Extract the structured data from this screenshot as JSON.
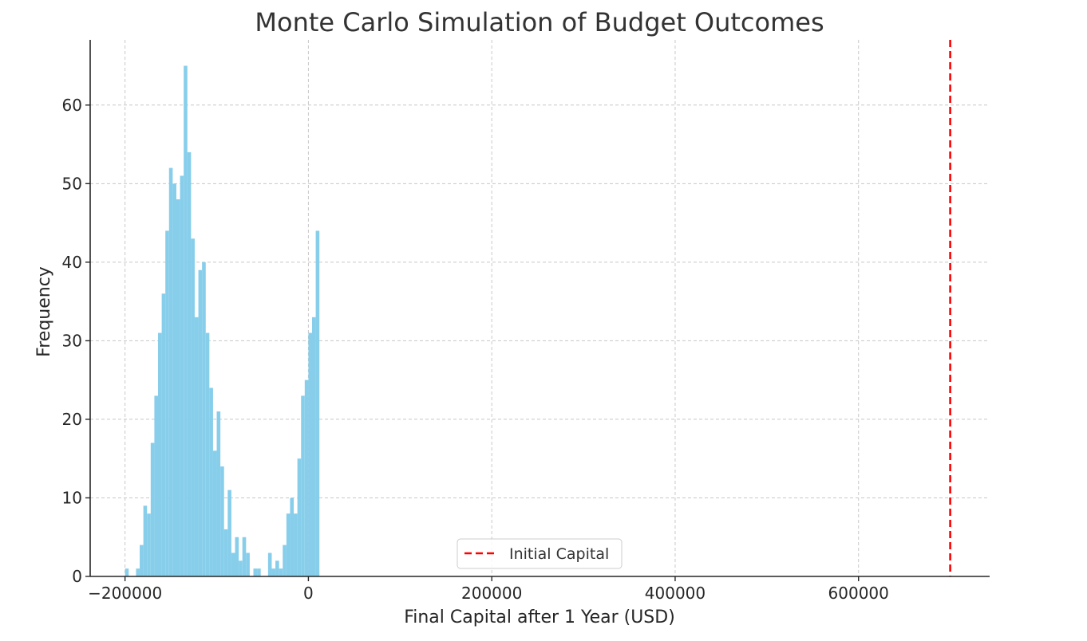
{
  "chart_data": {
    "type": "bar",
    "title": "Monte Carlo Simulation of Budget Outcomes",
    "xlabel": "Final Capital after 1 Year (USD)",
    "ylabel": "Frequency",
    "xlim": [
      -238000,
      743000
    ],
    "ylim": [
      0,
      68.3
    ],
    "x_ticks": [
      {
        "value": -200000,
        "label": "−200000"
      },
      {
        "value": 0,
        "label": "0"
      },
      {
        "value": 200000,
        "label": "200000"
      },
      {
        "value": 400000,
        "label": "400000"
      },
      {
        "value": 600000,
        "label": "600000"
      }
    ],
    "y_ticks": [
      {
        "value": 0,
        "label": "0"
      },
      {
        "value": 10,
        "label": "10"
      },
      {
        "value": 20,
        "label": "20"
      },
      {
        "value": 30,
        "label": "30"
      },
      {
        "value": 40,
        "label": "40"
      },
      {
        "value": 50,
        "label": "50"
      },
      {
        "value": 60,
        "label": "60"
      }
    ],
    "grid": true,
    "bar_color": "#87ceeb",
    "bins": {
      "start": -200000,
      "width": 4000,
      "counts": [
        1,
        0,
        0,
        1,
        4,
        9,
        8,
        17,
        23,
        31,
        36,
        44,
        52,
        50,
        48,
        51,
        65,
        54,
        43,
        33,
        39,
        40,
        31,
        24,
        16,
        21,
        14,
        6,
        11,
        3,
        5,
        2,
        5,
        3,
        0,
        1,
        1,
        0,
        0,
        3,
        1,
        2,
        1,
        4,
        8,
        10,
        8,
        15,
        23,
        25,
        31,
        33,
        44
      ]
    },
    "reference_line": {
      "name": "Initial Capital",
      "x": 700000,
      "color": "#ff0000",
      "style": "dashed"
    },
    "legend": {
      "position": "bottom-center",
      "entries": [
        "Initial Capital"
      ]
    }
  }
}
